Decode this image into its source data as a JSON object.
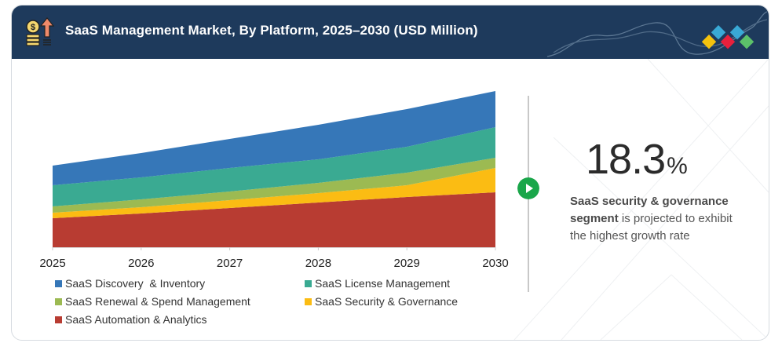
{
  "header": {
    "title": "SaaS Management Market, By Platform, 2025–2030 (USD Million)",
    "icon": "coins-growth-icon",
    "logo_colors": [
      "#f4c20d",
      "#39a9d6",
      "#e8203c",
      "#39a9d6",
      "#5cc16a"
    ]
  },
  "highlight": {
    "value": "18.3",
    "unit": "%",
    "description_bold": "SaaS security & governance segment",
    "description_rest": " is projected to exhibit the highest growth rate",
    "accent_color": "#1aa64a"
  },
  "chart_data": {
    "type": "area",
    "stacked": true,
    "title": "SaaS Management Market, By Platform, 2025–2030 (USD Million)",
    "xlabel": "",
    "ylabel": "",
    "y_axis_shown": false,
    "value_note": "Relative stacked magnitudes estimated from the figure; no y-axis values are printed",
    "x": [
      "2025",
      "2026",
      "2027",
      "2028",
      "2029",
      "2030"
    ],
    "ylim": [
      0,
      210
    ],
    "grid": false,
    "legend_position": "bottom",
    "series": [
      {
        "name": "SaaS Automation & Analytics",
        "color": "#b83c32",
        "values": [
          37,
          43,
          50,
          57,
          64,
          70
        ]
      },
      {
        "name": "SaaS Security & Governance",
        "color": "#fbbc13",
        "values": [
          7,
          8,
          10,
          12,
          15,
          31
        ]
      },
      {
        "name": "SaaS Renewal & Spend Management",
        "color": "#9cba52",
        "values": [
          8,
          10,
          11,
          13,
          16,
          13
        ]
      },
      {
        "name": "SaaS License Management",
        "color": "#3aaa92",
        "values": [
          27,
          28,
          30,
          30,
          33,
          39
        ]
      },
      {
        "name": "SaaS Discovery  & Inventory",
        "color": "#3677b8",
        "values": [
          25,
          31,
          37,
          44,
          48,
          46
        ]
      }
    ],
    "legend": [
      {
        "label": "SaaS Discovery  & Inventory",
        "color": "#3677b8"
      },
      {
        "label": "SaaS License Management",
        "color": "#3aaa92"
      },
      {
        "label": "SaaS Renewal & Spend Management",
        "color": "#9cba52"
      },
      {
        "label": "SaaS Security & Governance",
        "color": "#fbbc13"
      },
      {
        "label": "SaaS Automation & Analytics",
        "color": "#b83c32"
      }
    ]
  }
}
